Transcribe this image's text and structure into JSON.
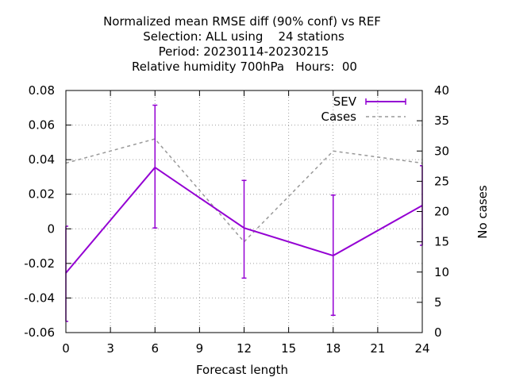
{
  "chart_data": {
    "type": "line",
    "title_lines": [
      "Normalized mean RMSE diff (90% conf) vs REF",
      "Selection: ALL using    24 stations",
      "Period: 20230114-20230215",
      "Relative humidity 700hPa   Hours:  00"
    ],
    "xlabel": "Forecast length",
    "ylabel": "",
    "y2label": "No cases",
    "xlim": [
      0,
      24
    ],
    "ylim": [
      -0.06,
      0.08
    ],
    "y2lim": [
      0,
      40
    ],
    "x_ticks": [
      "0",
      "3",
      "6",
      "9",
      "12",
      "15",
      "18",
      "21",
      "24"
    ],
    "y_ticks": [
      "0.08",
      "0.06",
      "0.04",
      "0.02",
      "0",
      "-0.02",
      "-0.04",
      "-0.06"
    ],
    "y2_ticks": [
      "40",
      "35",
      "30",
      "25",
      "20",
      "15",
      "10",
      "5",
      "0"
    ],
    "grid": true,
    "legend_position": "top-right",
    "series": [
      {
        "name": "SEV",
        "axis": "left",
        "style": "line-errorbars",
        "color": "#9400d3",
        "x": [
          0,
          6,
          12,
          18,
          24
        ],
        "y": [
          -0.0255,
          0.0355,
          0.0005,
          -0.0155,
          0.0135
        ],
        "ylow": [
          -0.0535,
          0.0005,
          -0.0285,
          -0.05,
          -0.0095
        ],
        "yhigh": [
          0.0015,
          0.0715,
          0.028,
          0.0195,
          0.0365
        ]
      },
      {
        "name": "Cases",
        "axis": "right",
        "style": "dashed",
        "color": "#999999",
        "x": [
          0,
          6,
          12,
          18,
          24
        ],
        "y": [
          28,
          32,
          15,
          30,
          28
        ]
      }
    ]
  }
}
